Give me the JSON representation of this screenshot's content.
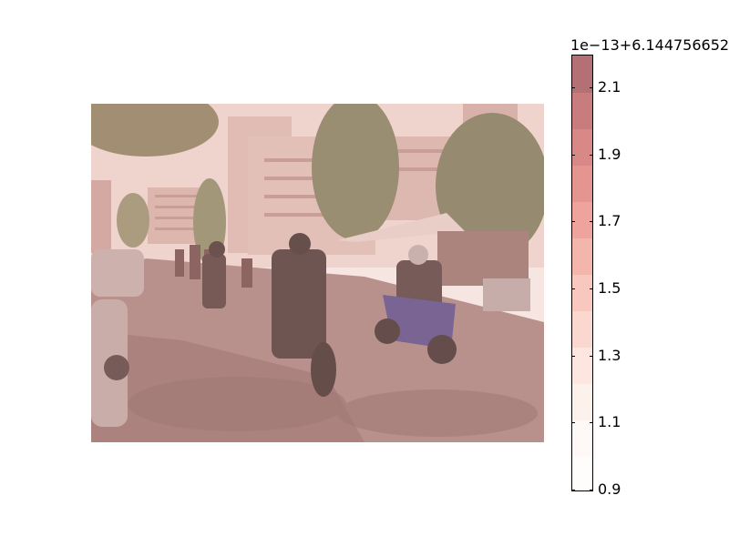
{
  "colorbar": {
    "offset_text": "1e−13+6.144756652",
    "tick_labels": [
      "0.9",
      "1.1",
      "1.3",
      "1.5",
      "1.7",
      "1.9",
      "2.1"
    ],
    "band_colors": [
      "#fffdfc",
      "#fef9f7",
      "#fdf1ec",
      "#fce6df",
      "#fad8cf",
      "#f8c8be",
      "#f4b5ad",
      "#eea39c",
      "#e5958f",
      "#d88886",
      "#c87c7e",
      "#b57075"
    ]
  },
  "photo": {
    "description_icon": "photo-street-motorcycles",
    "overlay_color": "#e8b4ad"
  }
}
